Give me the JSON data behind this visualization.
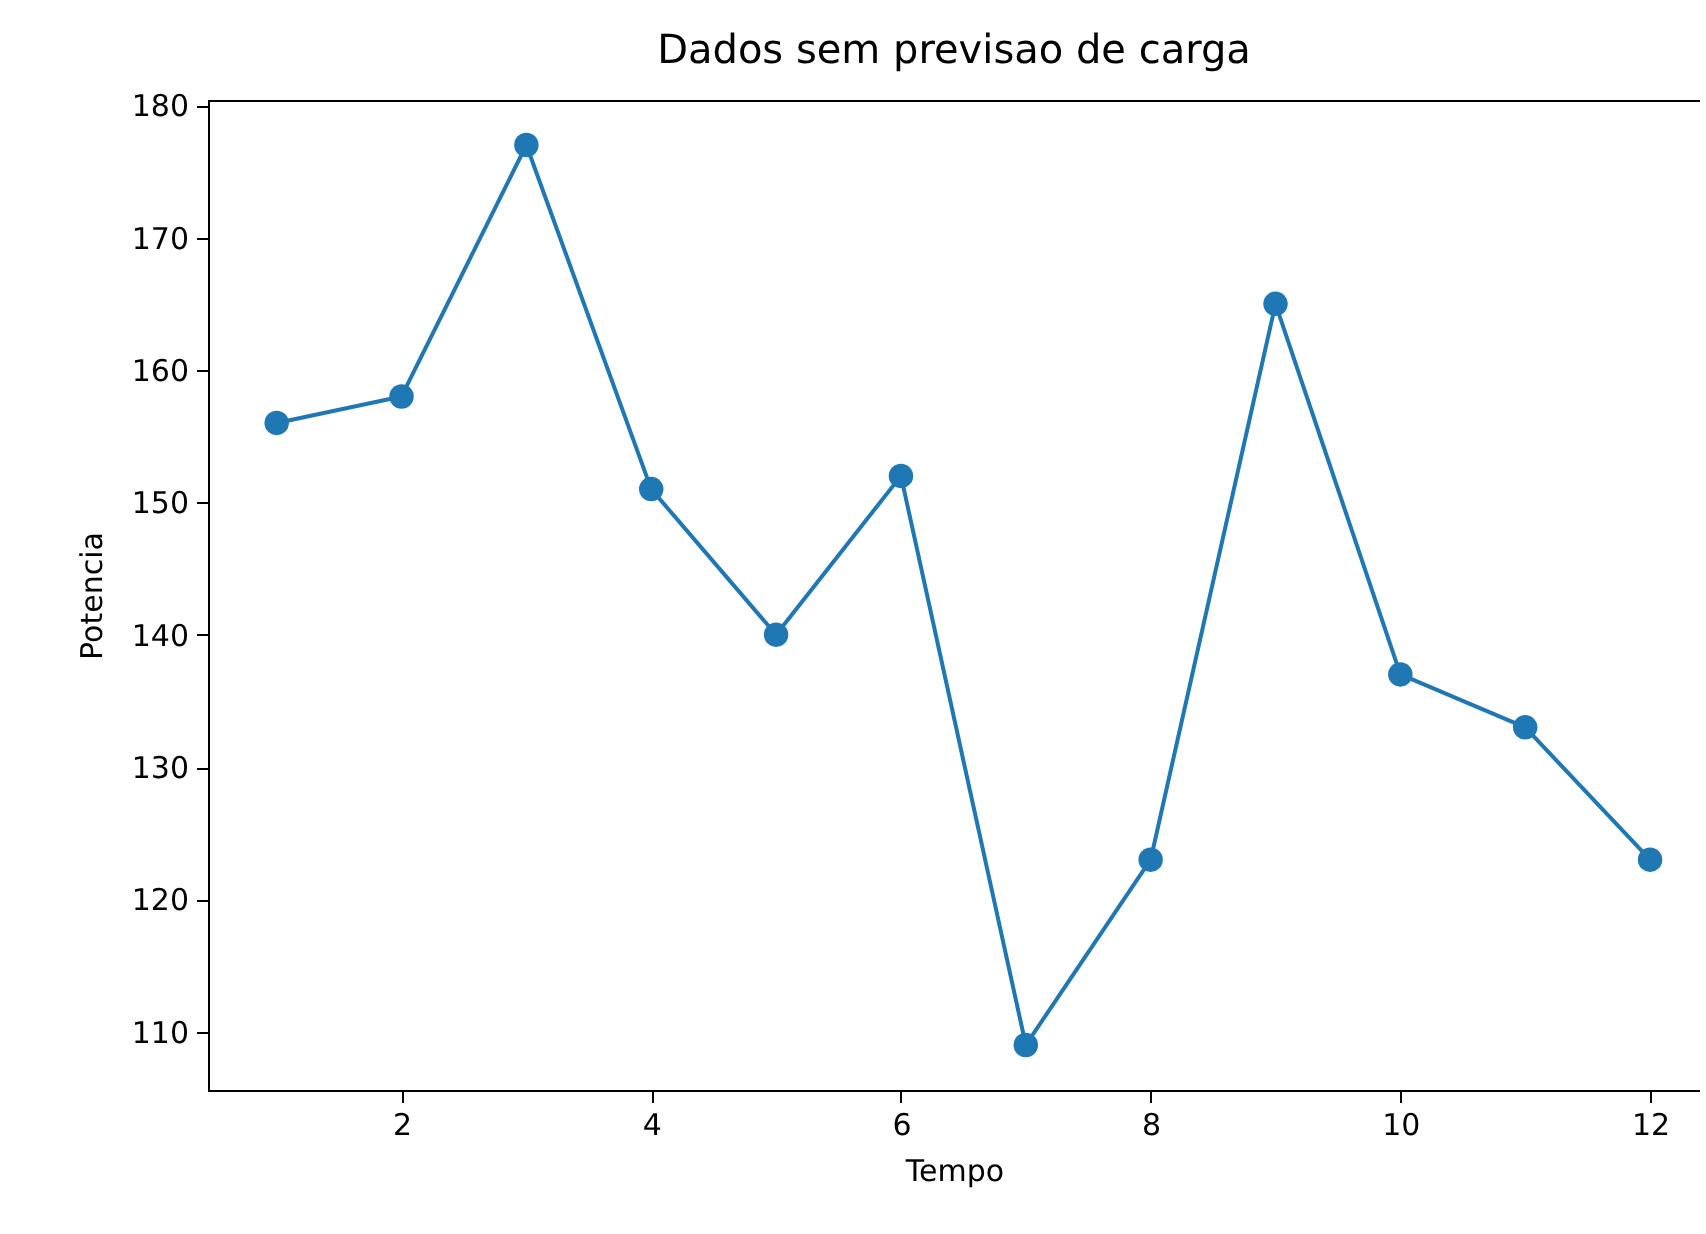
{
  "chart_data": {
    "type": "line",
    "title": "Dados sem previsao de carga",
    "xlabel": "Tempo",
    "ylabel": "Potencia",
    "x": [
      1,
      2,
      3,
      4,
      5,
      6,
      7,
      8,
      9,
      10,
      11,
      12
    ],
    "series": [
      {
        "color": "#1f77b4",
        "values": [
          156,
          158,
          177,
          151,
          140,
          152,
          109,
          123,
          165,
          137,
          133,
          123
        ]
      }
    ],
    "xlim": [
      0.45,
      12.4
    ],
    "ylim": [
      105.6,
      180.4
    ],
    "xticks": [
      2,
      4,
      6,
      8,
      10,
      12
    ],
    "yticks": [
      110,
      120,
      130,
      140,
      150,
      160,
      170,
      180
    ],
    "grid": false,
    "marker": "circle",
    "line_style": "solid"
  }
}
